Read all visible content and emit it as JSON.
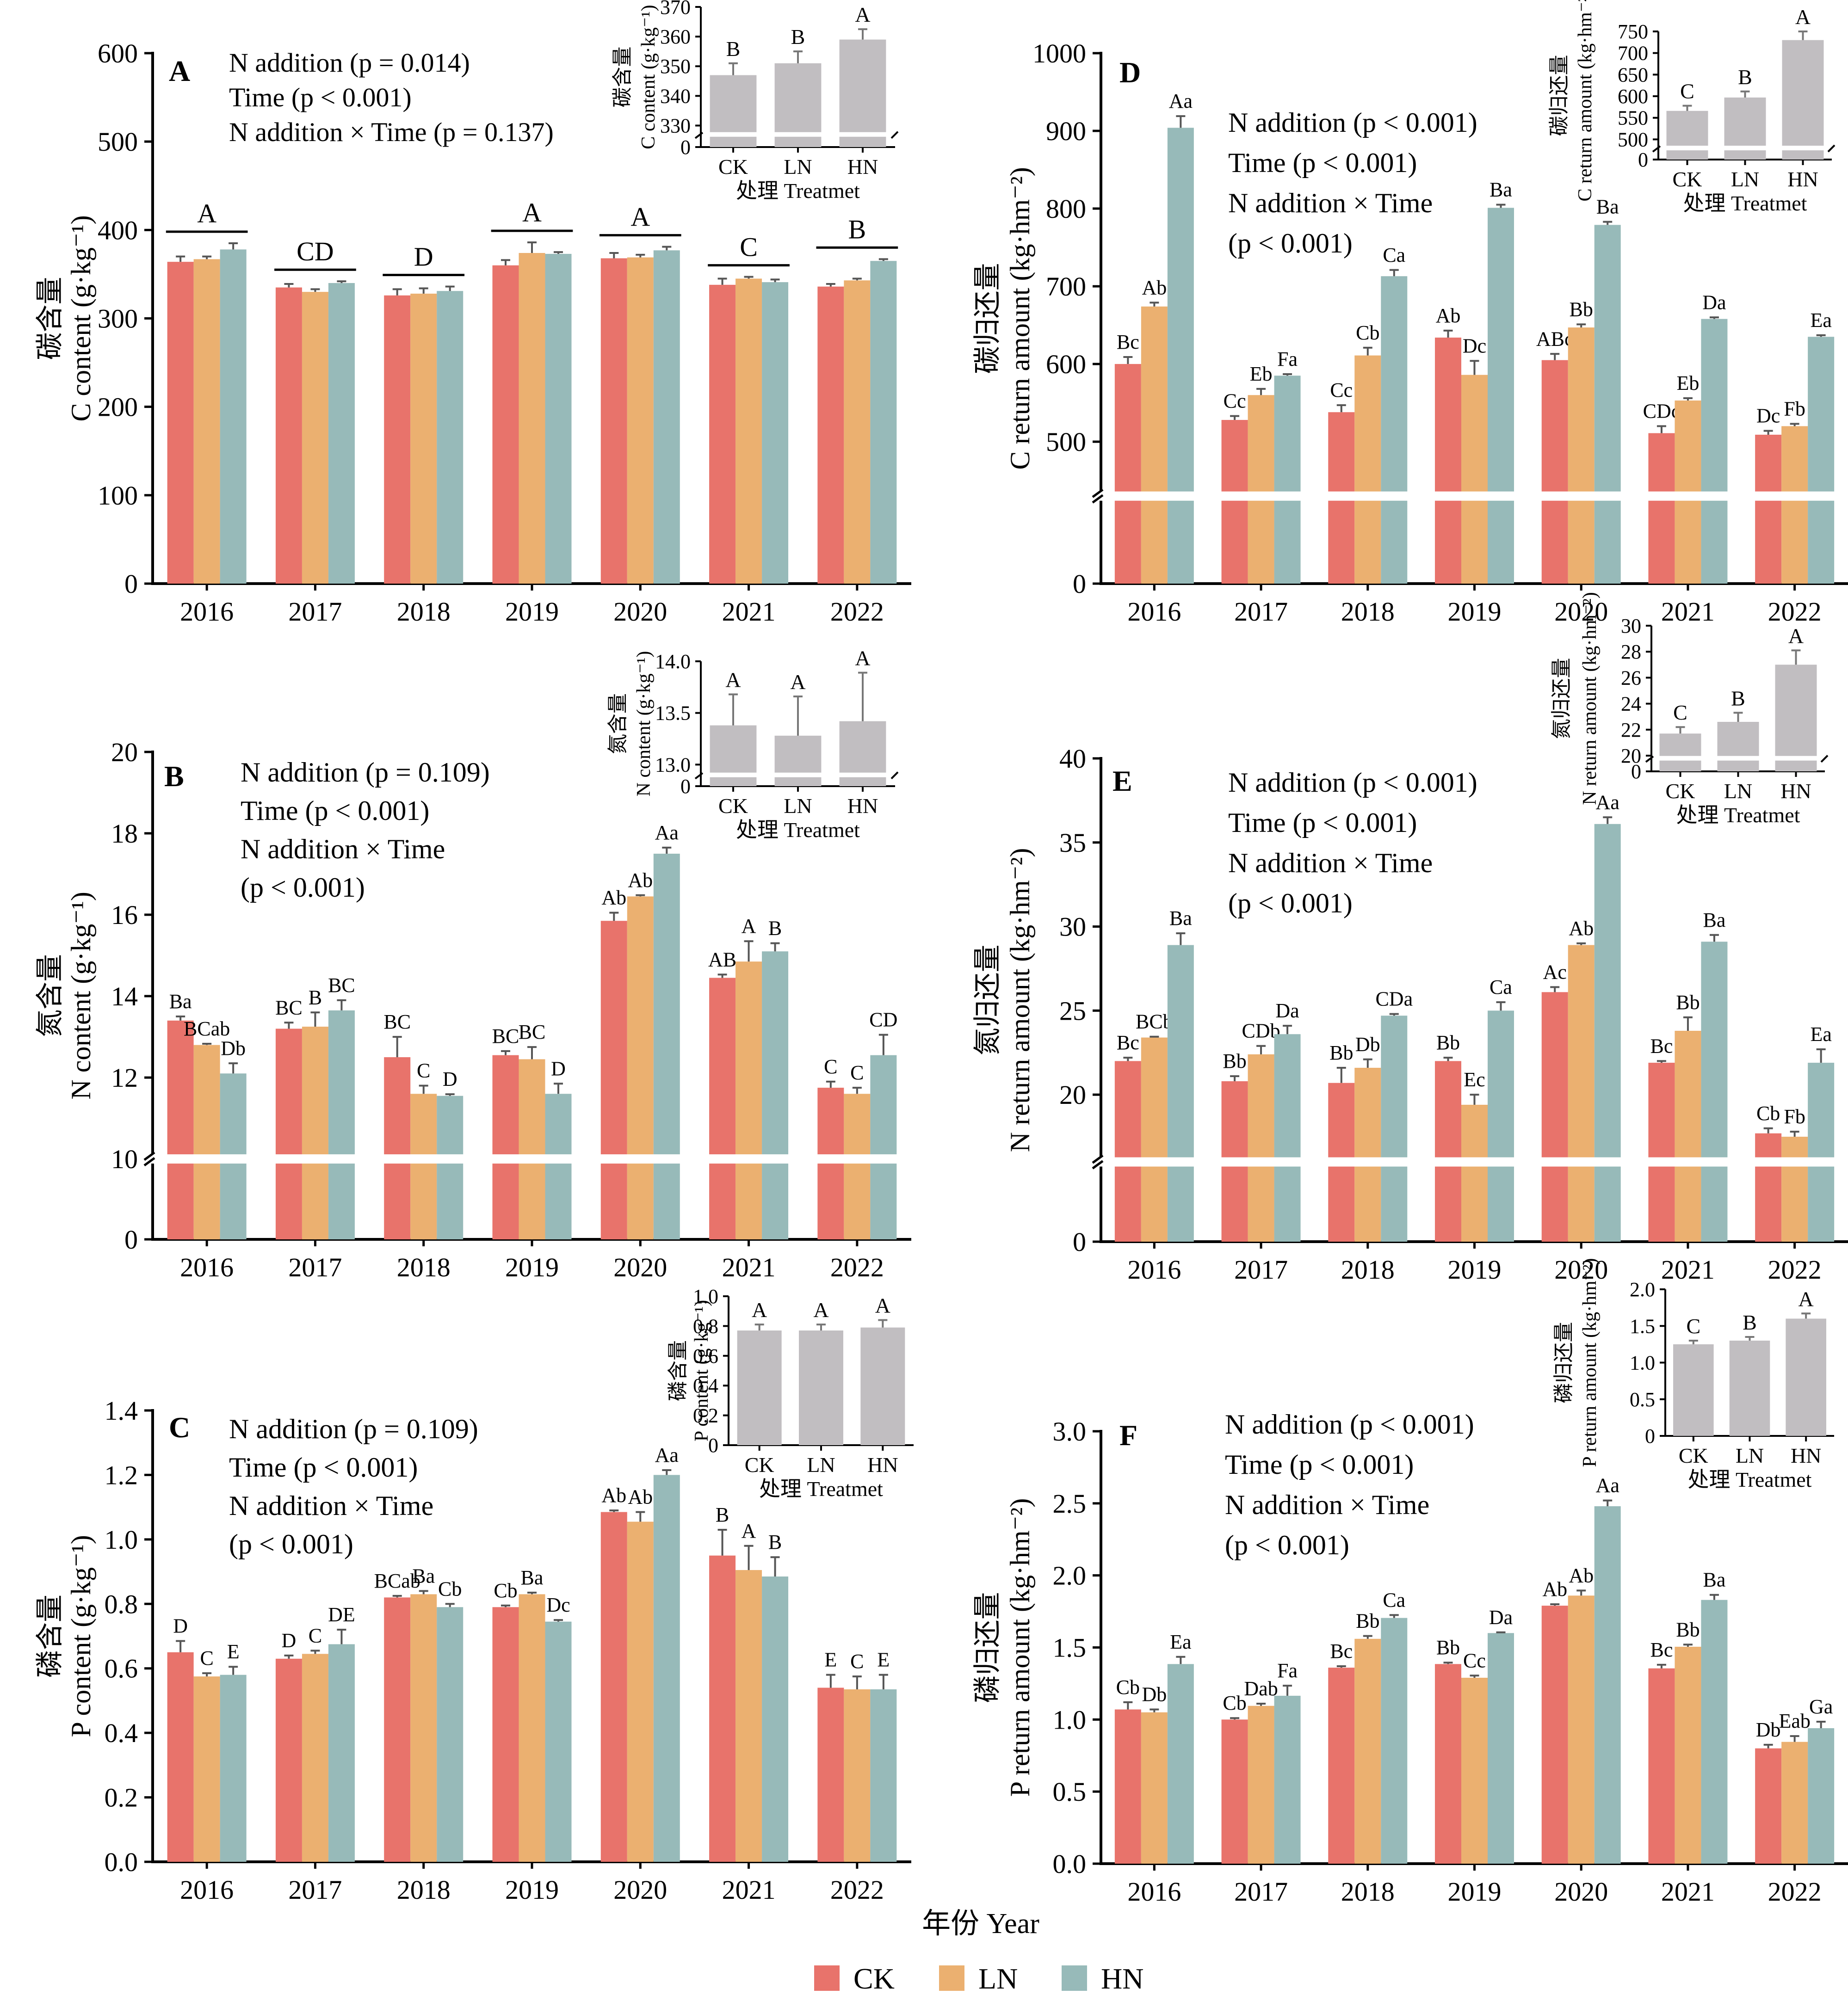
{
  "figure": {
    "xlabel": "年份 Year",
    "legend": [
      {
        "name": "CK",
        "color": "#E8736B"
      },
      {
        "name": "LN",
        "color": "#EBB070"
      },
      {
        "name": "HN",
        "color": "#97BAB9"
      }
    ]
  },
  "chart_data": [
    {
      "id": "A",
      "type": "bar",
      "panel_label": "A",
      "ylabel_cn": "碳含量",
      "ylabel_en": "C content (g·kg⁻¹)",
      "categories": [
        "2016",
        "2017",
        "2018",
        "2019",
        "2020",
        "2021",
        "2022"
      ],
      "ylim": [
        0,
        600
      ],
      "yticks": [
        0,
        100,
        200,
        300,
        400,
        500,
        600
      ],
      "decimals": 0,
      "break": null,
      "stats": [
        "N addition (p = 0.014)",
        "Time (p < 0.001)",
        "N addition × Time (p = 0.137)"
      ],
      "series": [
        {
          "name": "CK",
          "values": [
            364,
            335,
            326,
            360,
            368,
            338,
            336
          ],
          "errors": [
            6,
            4,
            7,
            6,
            6,
            7,
            3
          ]
        },
        {
          "name": "LN",
          "values": [
            367,
            330,
            328,
            374,
            369,
            345,
            343
          ],
          "errors": [
            3,
            3,
            6,
            12,
            3,
            2,
            2
          ]
        },
        {
          "name": "HN",
          "values": [
            378,
            340,
            331,
            373,
            377,
            341,
            365
          ],
          "errors": [
            7,
            2,
            5,
            2,
            4,
            3,
            2
          ]
        }
      ],
      "year_letters": [
        "A",
        "CD",
        "D",
        "A",
        "A",
        "C",
        "B"
      ],
      "bar_labels": null,
      "inset": {
        "ylabel_cn": "碳含量",
        "ylabel_en": "C content (g·kg⁻¹)",
        "xlabel": "处理 Treatmet",
        "categories": [
          "CK",
          "LN",
          "HN"
        ],
        "values": [
          347,
          351,
          359
        ],
        "errors": [
          4,
          4,
          3.5
        ],
        "letters": [
          "B",
          "B",
          "A"
        ],
        "ylim": [
          0,
          370
        ],
        "yticks": [
          0,
          330,
          340,
          350,
          360,
          370
        ],
        "break": {
          "low": 0,
          "high": 327
        }
      }
    },
    {
      "id": "B",
      "type": "bar",
      "panel_label": "B",
      "ylabel_cn": "氮含量",
      "ylabel_en": "N content (g·kg⁻¹)",
      "categories": [
        "2016",
        "2017",
        "2018",
        "2019",
        "2020",
        "2021",
        "2022"
      ],
      "ylim": [
        0,
        20
      ],
      "yticks": [
        0,
        10,
        12,
        14,
        16,
        18,
        20
      ],
      "decimals": 0,
      "break": {
        "low": 0,
        "high": 10
      },
      "stats": [
        "N addition (p = 0.109)",
        "Time (p < 0.001)",
        "N addition × Time",
        "(p < 0.001)"
      ],
      "series": [
        {
          "name": "CK",
          "values": [
            13.4,
            13.2,
            12.5,
            12.55,
            15.85,
            14.45,
            11.75
          ],
          "errors": [
            0.1,
            0.15,
            0.5,
            0.1,
            0.2,
            0.08,
            0.15
          ]
        },
        {
          "name": "LN",
          "values": [
            12.8,
            13.25,
            11.6,
            12.45,
            16.45,
            14.85,
            11.6
          ],
          "errors": [
            0.03,
            0.35,
            0.2,
            0.3,
            0.03,
            0.5,
            0.15
          ]
        },
        {
          "name": "HN",
          "values": [
            12.1,
            13.65,
            11.55,
            11.6,
            17.5,
            15.1,
            12.55
          ],
          "errors": [
            0.25,
            0.25,
            0.04,
            0.25,
            0.15,
            0.2,
            0.5
          ]
        }
      ],
      "year_letters": null,
      "bar_labels": [
        [
          "Ba",
          "BCab",
          "Db"
        ],
        [
          "BC",
          "B",
          "BC"
        ],
        [
          "BC",
          "C",
          "D"
        ],
        [
          "BC",
          "BC",
          "D"
        ],
        [
          "Ab",
          "Ab",
          "Aa"
        ],
        [
          "AB",
          "A",
          "B"
        ],
        [
          "C",
          "C",
          "CD"
        ]
      ],
      "inset": {
        "ylabel_cn": "氮含量",
        "ylabel_en": "N content (g·kg⁻¹)",
        "xlabel": "处理 Treatmet",
        "categories": [
          "CK",
          "LN",
          "HN"
        ],
        "values": [
          13.38,
          13.28,
          13.42
        ],
        "errors": [
          0.3,
          0.38,
          0.47
        ],
        "letters": [
          "A",
          "A",
          "A"
        ],
        "ylim": [
          0,
          14.0
        ],
        "yticks": [
          0,
          13.0,
          13.5,
          14.0
        ],
        "break": {
          "low": 0,
          "high": 12.9
        }
      }
    },
    {
      "id": "C",
      "type": "bar",
      "panel_label": "C",
      "ylabel_cn": "磷含量",
      "ylabel_en": "P content (g·kg⁻¹)",
      "categories": [
        "2016",
        "2017",
        "2018",
        "2019",
        "2020",
        "2021",
        "2022"
      ],
      "ylim": [
        0,
        1.4
      ],
      "yticks": [
        0,
        0.2,
        0.4,
        0.6,
        0.8,
        1.0,
        1.2,
        1.4
      ],
      "decimals": 1,
      "break": null,
      "stats": [
        "N addition (p = 0.109)",
        "Time (p < 0.001)",
        "N addition × Time",
        "(p < 0.001)"
      ],
      "series": [
        {
          "name": "CK",
          "values": [
            0.65,
            0.63,
            0.82,
            0.79,
            1.085,
            0.95,
            0.54
          ],
          "errors": [
            0.035,
            0.01,
            0.005,
            0.005,
            0.005,
            0.08,
            0.04
          ]
        },
        {
          "name": "LN",
          "values": [
            0.575,
            0.645,
            0.83,
            0.83,
            1.055,
            0.905,
            0.535
          ],
          "errors": [
            0.01,
            0.01,
            0.01,
            0.005,
            0.03,
            0.075,
            0.04
          ]
        },
        {
          "name": "HN",
          "values": [
            0.58,
            0.675,
            0.79,
            0.745,
            1.2,
            0.885,
            0.535
          ],
          "errors": [
            0.025,
            0.045,
            0.01,
            0.005,
            0.015,
            0.06,
            0.045
          ]
        }
      ],
      "year_letters": null,
      "bar_labels": [
        [
          "D",
          "C",
          "E"
        ],
        [
          "D",
          "C",
          "DE"
        ],
        [
          "BCab",
          "Ba",
          "Cb"
        ],
        [
          "Cb",
          "Ba",
          "Dc"
        ],
        [
          "Ab",
          "Ab",
          "Aa"
        ],
        [
          "B",
          "A",
          "B"
        ],
        [
          "E",
          "C",
          "E"
        ]
      ],
      "inset": {
        "ylabel_cn": "磷含量",
        "ylabel_en": "P content (g·kg⁻¹)",
        "xlabel": "处理 Treatmet",
        "categories": [
          "CK",
          "LN",
          "HN"
        ],
        "values": [
          0.77,
          0.77,
          0.79
        ],
        "errors": [
          0.04,
          0.04,
          0.05
        ],
        "letters": [
          "A",
          "A",
          "A"
        ],
        "ylim": [
          0,
          1.0
        ],
        "yticks": [
          0,
          0.2,
          0.4,
          0.6,
          0.8,
          1.0
        ],
        "break": null
      }
    },
    {
      "id": "D",
      "type": "bar",
      "panel_label": "D",
      "ylabel_cn": "碳归还量",
      "ylabel_en": "C return amount (kg·hm⁻²)",
      "categories": [
        "2016",
        "2017",
        "2018",
        "2019",
        "2020",
        "2021",
        "2022"
      ],
      "ylim": [
        0,
        1000
      ],
      "yticks": [
        0,
        500,
        600,
        700,
        800,
        900,
        1000
      ],
      "decimals": 0,
      "break": {
        "low": 0,
        "high": 430
      },
      "stats": [
        "N addition (p < 0.001)",
        "Time (p < 0.001)",
        "N addition × Time",
        "(p < 0.001)"
      ],
      "series": [
        {
          "name": "CK",
          "values": [
            600,
            528,
            538,
            634,
            605,
            511,
            509
          ],
          "errors": [
            9,
            5,
            9,
            9,
            8,
            9,
            5
          ]
        },
        {
          "name": "LN",
          "values": [
            674,
            560,
            611,
            586,
            647,
            553,
            520
          ],
          "errors": [
            5,
            8,
            10,
            18,
            4,
            3,
            3
          ]
        },
        {
          "name": "HN",
          "values": [
            904,
            585,
            713,
            801,
            779,
            658,
            635
          ],
          "errors": [
            15,
            2,
            8,
            4,
            4,
            2,
            2
          ]
        }
      ],
      "year_letters": null,
      "bar_labels": [
        [
          "Bc",
          "Ab",
          "Aa"
        ],
        [
          "Cc",
          "Eb",
          "Fa"
        ],
        [
          "Cc",
          "Cb",
          "Ca"
        ],
        [
          "Ab",
          "Dc",
          "Ba"
        ],
        [
          "ABc",
          "Bb",
          "Ba"
        ],
        [
          "CDc",
          "Eb",
          "Da"
        ],
        [
          "Dc",
          "Fb",
          "Ea"
        ]
      ],
      "inset": {
        "ylabel_cn": "碳归还量",
        "ylabel_en": "C return amount (kg·hm⁻²)",
        "xlabel": "处理 Treatmet",
        "categories": [
          "CK",
          "LN",
          "HN"
        ],
        "values": [
          566,
          597,
          730
        ],
        "errors": [
          12,
          14,
          20
        ],
        "letters": [
          "C",
          "B",
          "A"
        ],
        "ylim": [
          0,
          750
        ],
        "yticks": [
          0,
          500,
          550,
          600,
          650,
          700,
          750
        ],
        "break": {
          "low": 0,
          "high": 480
        }
      }
    },
    {
      "id": "E",
      "type": "bar",
      "panel_label": "E",
      "ylabel_cn": "氮归还量",
      "ylabel_en": "N return amount (kg·hm⁻²)",
      "categories": [
        "2016",
        "2017",
        "2018",
        "2019",
        "2020",
        "2021",
        "2022"
      ],
      "ylim": [
        0,
        40
      ],
      "yticks": [
        0,
        20,
        25,
        30,
        35,
        40
      ],
      "decimals": 0,
      "break": {
        "low": 0,
        "high": 16
      },
      "stats": [
        "N addition (p < 0.001)",
        "Time (p < 0.001)",
        "N addition × Time",
        "(p < 0.001)"
      ],
      "series": [
        {
          "name": "CK",
          "values": [
            22.0,
            20.8,
            20.7,
            22.0,
            26.1,
            21.9,
            17.7
          ],
          "errors": [
            0.2,
            0.3,
            0.9,
            0.2,
            0.3,
            0.1,
            0.3
          ]
        },
        {
          "name": "LN",
          "values": [
            23.4,
            22.4,
            21.6,
            19.4,
            28.9,
            23.8,
            17.5
          ],
          "errors": [
            0.05,
            0.5,
            0.5,
            0.6,
            0.1,
            0.8,
            0.3
          ]
        },
        {
          "name": "HN",
          "values": [
            28.9,
            23.6,
            24.7,
            25.0,
            36.1,
            29.1,
            21.9
          ],
          "errors": [
            0.7,
            0.5,
            0.1,
            0.5,
            0.4,
            0.4,
            0.8
          ]
        }
      ],
      "year_letters": null,
      "bar_labels": [
        [
          "Bc",
          "BCb",
          "Ba"
        ],
        [
          "Bb",
          "CDb",
          "Da"
        ],
        [
          "Bb",
          "Db",
          "CDa"
        ],
        [
          "Bb",
          "Ec",
          "Ca"
        ],
        [
          "Ac",
          "Ab",
          "Aa"
        ],
        [
          "Bc",
          "Bb",
          "Ba"
        ],
        [
          "Cb",
          "Fb",
          "Ea"
        ]
      ],
      "inset": {
        "ylabel_cn": "氮归还量",
        "ylabel_en": "N return amount (kg·hm⁻²)",
        "xlabel": "处理 Treatmet",
        "categories": [
          "CK",
          "LN",
          "HN"
        ],
        "values": [
          21.7,
          22.6,
          27.0
        ],
        "errors": [
          0.5,
          0.7,
          1.1
        ],
        "letters": [
          "C",
          "B",
          "A"
        ],
        "ylim": [
          0,
          30
        ],
        "yticks": [
          0,
          20,
          22,
          24,
          26,
          28,
          30
        ],
        "break": {
          "low": 0,
          "high": 19.8
        }
      }
    },
    {
      "id": "F",
      "type": "bar",
      "panel_label": "F",
      "ylabel_cn": "磷归还量",
      "ylabel_en": "P return amount (kg·hm⁻²)",
      "categories": [
        "2016",
        "2017",
        "2018",
        "2019",
        "2020",
        "2021",
        "2022"
      ],
      "ylim": [
        0,
        3.0
      ],
      "yticks": [
        0,
        0.5,
        1.0,
        1.5,
        2.0,
        2.5,
        3.0
      ],
      "decimals": 1,
      "break": null,
      "stats": [
        "N addition (p < 0.001)",
        "Time (p < 0.001)",
        "N addition × Time",
        "(p < 0.001)"
      ],
      "series": [
        {
          "name": "CK",
          "values": [
            1.07,
            1.0,
            1.36,
            1.385,
            1.79,
            1.355,
            0.8
          ],
          "errors": [
            0.05,
            0.01,
            0.01,
            0.01,
            0.01,
            0.025,
            0.025
          ]
        },
        {
          "name": "LN",
          "values": [
            1.05,
            1.095,
            1.56,
            1.29,
            1.86,
            1.505,
            0.845
          ],
          "errors": [
            0.02,
            0.015,
            0.02,
            0.015,
            0.035,
            0.015,
            0.04
          ]
        },
        {
          "name": "HN",
          "values": [
            1.385,
            1.165,
            1.705,
            1.6,
            2.48,
            1.83,
            0.94
          ],
          "errors": [
            0.05,
            0.07,
            0.02,
            0.005,
            0.04,
            0.035,
            0.045
          ]
        }
      ],
      "year_letters": null,
      "bar_labels": [
        [
          "Cb",
          "Db",
          "Ea"
        ],
        [
          "Cb",
          "Dab",
          "Fa"
        ],
        [
          "Bc",
          "Bb",
          "Ca"
        ],
        [
          "Bb",
          "Cc",
          "Da"
        ],
        [
          "Ab",
          "Ab",
          "Aa"
        ],
        [
          "Bc",
          "Bb",
          "Ba"
        ],
        [
          "Db",
          "Eab",
          "Ga"
        ]
      ],
      "inset": {
        "ylabel_cn": "磷归还量",
        "ylabel_en": "P return amount (kg·hm⁻²)",
        "xlabel": "处理 Treatmet",
        "categories": [
          "CK",
          "LN",
          "HN"
        ],
        "values": [
          1.25,
          1.3,
          1.6
        ],
        "errors": [
          0.05,
          0.05,
          0.07
        ],
        "letters": [
          "C",
          "B",
          "A"
        ],
        "ylim": [
          0,
          2.0
        ],
        "yticks": [
          0,
          0.5,
          1.0,
          1.5,
          2.0
        ],
        "break": null
      }
    }
  ]
}
